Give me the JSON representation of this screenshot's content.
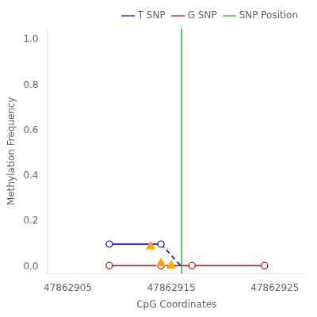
{
  "chart_data": {
    "type": "line",
    "xlabel": "CpG Coordinates",
    "ylabel": "Methylation Frequency",
    "xlim": [
      47862903,
      47862928
    ],
    "ylim": [
      -0.03,
      1.05
    ],
    "xticks": [
      47862905,
      47862915,
      47862925
    ],
    "yticks": [
      {
        "value": 0.0,
        "label": "0.0"
      },
      0.2,
      0.4,
      0.6,
      0.8,
      {
        "value": 1.0,
        "label": "1.0"
      }
    ],
    "grid": false,
    "legend": "upper right",
    "series": [
      {
        "name": "T SNP",
        "color": "#0000BB",
        "x": [
          47862909,
          47862914
        ],
        "values": [
          0.1,
          0.1
        ],
        "marker": "circle",
        "line_style": "solid"
      },
      {
        "color": "#0000BB",
        "x": [
          47862914,
          47862916
        ],
        "values": [
          0.1,
          0.0
        ],
        "marker": "none",
        "line_style": "dashed"
      },
      {
        "name": "G SNP",
        "color": "#CC0000",
        "x": [
          47862909,
          47862914,
          47862917,
          47862924
        ],
        "values": [
          0.005,
          0.005,
          0.005,
          0.005
        ],
        "marker": "circle",
        "line_style": "solid"
      },
      {
        "type": "scatter",
        "color": "#FFA500",
        "x": [
          47862913,
          47862914,
          47862915
        ],
        "values": [
          0.09,
          0.015,
          0.005
        ],
        "marker": "triangle",
        "line_style": "none"
      },
      {
        "name": "SNP Position",
        "type": "vline",
        "color": "#00CC00",
        "x": [
          47862916
        ],
        "line_style": "solid"
      }
    ]
  }
}
